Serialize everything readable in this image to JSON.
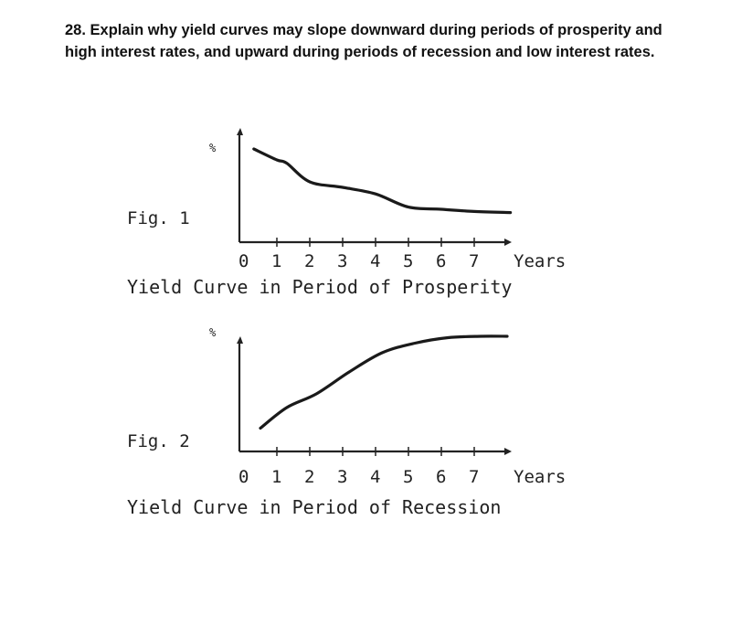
{
  "question": {
    "text": "28. Explain why yield curves may slope downward during periods of prosperity and high interest rates, and upward during periods of recession and low interest rates."
  },
  "chart_data": [
    {
      "type": "line",
      "figure_label": "Fig. 1",
      "title": "Yield Curve in Period of Prosperity",
      "ylabel": "%",
      "xlabel": "Years",
      "x_ticks": [
        "0",
        "1",
        "2",
        "3",
        "4",
        "5",
        "6",
        "7"
      ],
      "xlim": [
        0,
        8.5
      ],
      "shape": "downward sloping",
      "x": [
        0.3,
        1.0,
        1.3,
        2.0,
        3.0,
        4.0,
        5.0,
        6.0,
        7.0,
        8.1
      ],
      "y": [
        0.85,
        0.75,
        0.72,
        0.55,
        0.5,
        0.44,
        0.32,
        0.3,
        0.28,
        0.27
      ]
    },
    {
      "type": "line",
      "figure_label": "Fig. 2",
      "title": "Yield Curve in Period of Recession",
      "ylabel": "%",
      "xlabel": "Years",
      "x_ticks": [
        "0",
        "1",
        "2",
        "3",
        "4",
        "5",
        "6",
        "7"
      ],
      "xlim": [
        0,
        8.5
      ],
      "shape": "upward sloping",
      "x": [
        0.5,
        1.3,
        2.2,
        3.2,
        4.2,
        5.2,
        6.2,
        7.2,
        8.0
      ],
      "y": [
        0.17,
        0.32,
        0.42,
        0.58,
        0.72,
        0.79,
        0.83,
        0.84,
        0.84
      ]
    }
  ]
}
